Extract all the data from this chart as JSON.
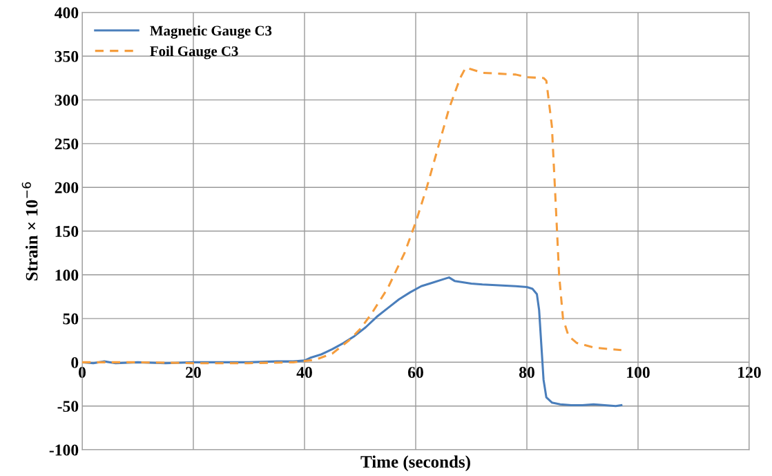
{
  "chart_data": {
    "type": "line",
    "xlabel": "Time (seconds)",
    "ylabel": "Strain × 10$^{−6}$",
    "xlim": [
      0,
      120
    ],
    "xticks": [
      0,
      20,
      40,
      60,
      80,
      100,
      120
    ],
    "ylim": [
      -100,
      400
    ],
    "yticks": [
      -100,
      -50,
      0,
      50,
      100,
      150,
      200,
      250,
      300,
      350,
      400
    ],
    "grid": true,
    "legend": "top left",
    "marker": "none",
    "series": [
      {
        "name": "Magnetic Gauge C3",
        "color": "#4a7ebb",
        "line_style": "solid",
        "x": [
          0,
          2,
          4,
          6,
          10,
          15,
          20,
          25,
          30,
          35,
          38,
          40,
          41,
          43,
          45,
          47,
          49,
          51,
          53,
          55,
          57,
          59,
          61,
          63,
          65,
          66,
          67,
          68,
          70,
          72,
          75,
          78,
          80,
          81,
          81.8,
          82.2,
          82.6,
          83,
          83.5,
          84.5,
          86,
          88,
          90,
          92,
          94,
          96,
          97
        ],
        "values": [
          0,
          -1,
          1,
          -1,
          0,
          -1,
          0,
          0,
          0,
          1,
          1,
          2,
          5,
          9,
          15,
          22,
          30,
          40,
          52,
          62,
          72,
          80,
          87,
          91,
          95,
          97,
          93,
          92,
          90,
          89,
          88,
          87,
          86,
          84,
          78,
          60,
          20,
          -20,
          -40,
          -46,
          -48,
          -49,
          -49,
          -48,
          -49,
          -50,
          -49
        ]
      },
      {
        "name": "Foil Gauge C3",
        "color": "#f59d3d",
        "line_style": "dashed",
        "x": [
          0,
          10,
          20,
          30,
          38,
          42,
          45,
          48,
          50,
          52,
          55,
          58,
          60,
          62,
          64,
          66,
          68,
          69,
          70,
          72,
          75,
          78,
          80,
          83,
          83.5,
          84.5,
          85.2,
          85.8,
          86.5,
          87.5,
          89,
          92,
          95,
          97
        ],
        "values": [
          0,
          0,
          -1,
          -1,
          0,
          3,
          10,
          25,
          38,
          55,
          85,
          125,
          160,
          200,
          245,
          290,
          325,
          337,
          335,
          331,
          330,
          329,
          326,
          325,
          322,
          270,
          180,
          100,
          50,
          30,
          22,
          17,
          15,
          14
        ]
      }
    ]
  }
}
